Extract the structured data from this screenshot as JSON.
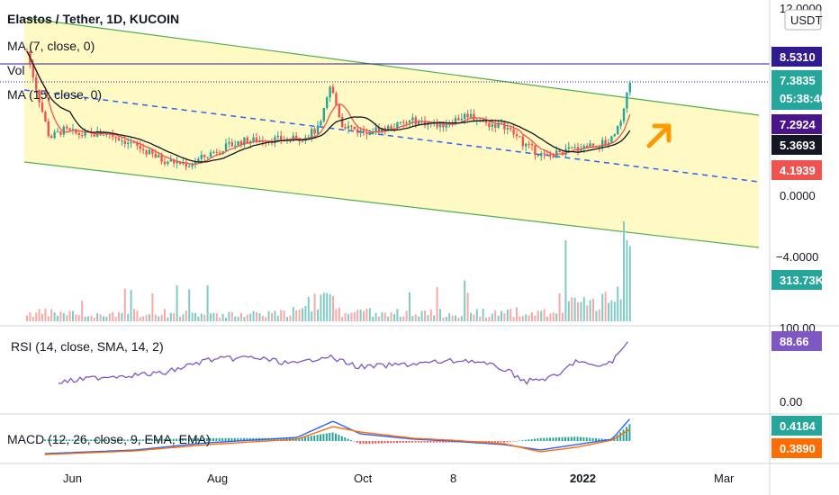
{
  "header": {
    "title": "Elastos / Tether, 1D, KUCOIN",
    "ma7": "MA (7, close, 0)",
    "vol": "Vol",
    "ma15": "MA (15, close, 0)",
    "rsi": "RSI (14, close, SMA, 14, 2)",
    "macd": "MACD (12, 26, close, 9, EMA, EMA)"
  },
  "price_axis": {
    "currency": "USDT",
    "top_label": "12.0000",
    "ticks": [
      "0.0000",
      "−4.0000"
    ],
    "rsi_top": "100.00",
    "rsi_zero": "0.00"
  },
  "tags": [
    {
      "text": "8.5310",
      "color": "#311b92"
    },
    {
      "text": "7.3835",
      "sub": "05:38:40",
      "color": "#26a69a"
    },
    {
      "text": "7.2924",
      "color": "#4a148c"
    },
    {
      "text": "5.3693",
      "color": "#131722"
    },
    {
      "text": "4.1939",
      "color": "#ef5350"
    },
    {
      "text": "313.73K",
      "color": "#26a69a"
    },
    {
      "text": "88.66",
      "color": "#7e57c2"
    },
    {
      "text": "0.4184",
      "color": "#26a69a"
    },
    {
      "text": "0.3890",
      "color": "#ff6d00"
    }
  ],
  "time_axis": [
    "Jun",
    "Aug",
    "Oct",
    "8",
    "2022",
    "Mar"
  ],
  "colors": {
    "up": "#26a69a",
    "down": "#ef5350",
    "ma7": "#ef5350",
    "ma15": "#131722",
    "channel_line": "#4caf50",
    "channel_fill": "#fff9c4",
    "midline": "#2962ff",
    "rsi": "#7e57c2",
    "macd": "#2962ff",
    "signal": "#ff6d00",
    "arrow": "#ff9800",
    "hline": "#311b92"
  },
  "chart_data": {
    "type": "line",
    "title": "Elastos / Tether, 1D, KUCOIN",
    "x": [
      "Jun",
      "Aug",
      "Oct",
      "8",
      "2022"
    ],
    "series": [
      {
        "name": "MA (7, close, 0)",
        "values": [
          5.0,
          3.3,
          4.1,
          4.9,
          3.6
        ]
      },
      {
        "name": "MA (15, close, 0)",
        "values": [
          5.3,
          3.4,
          4.0,
          4.8,
          3.7
        ]
      }
    ],
    "last_close": 7.3835,
    "ylim": [
      -6,
      12
    ],
    "rsi_last": 88.66,
    "volume_last": "313.73K",
    "macd_last": 0.4184,
    "signal_last": 0.389
  }
}
